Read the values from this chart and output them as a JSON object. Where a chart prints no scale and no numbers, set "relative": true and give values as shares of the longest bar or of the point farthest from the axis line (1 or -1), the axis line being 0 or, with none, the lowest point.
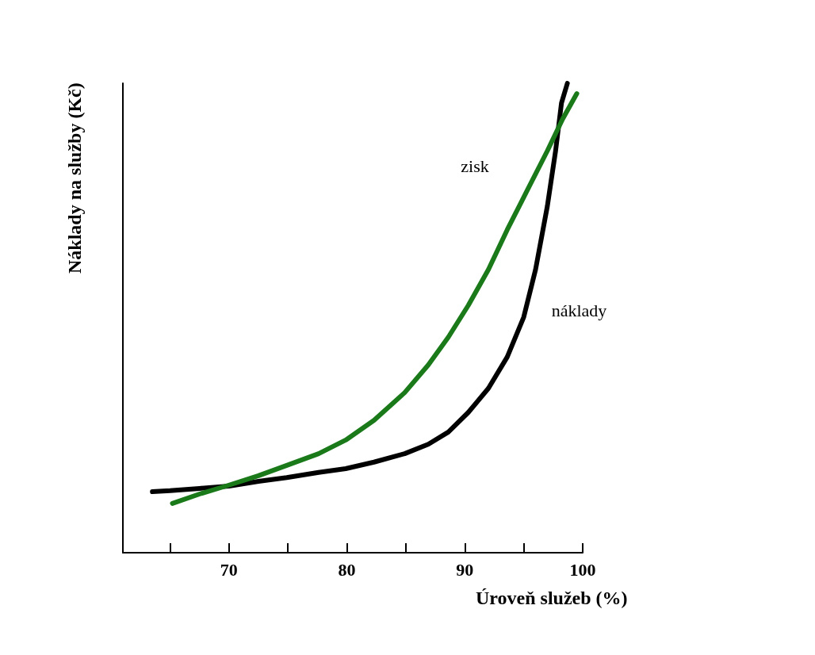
{
  "chart_data": {
    "type": "line",
    "relative": true,
    "xlabel": "Úroveň služeb (%)",
    "ylabel": "Náklady na služby (Kč)",
    "xlim": [
      61,
      100
    ],
    "xticks": [
      {
        "value": 65,
        "label": null
      },
      70,
      {
        "value": 75,
        "label": null
      },
      80,
      {
        "value": 85,
        "label": null
      },
      90,
      {
        "value": 95,
        "label": null
      },
      100
    ],
    "marker": "none",
    "line_style": "solid",
    "grid": false,
    "legend": false,
    "series": [
      {
        "name": "náklady",
        "color": "#000000",
        "x": [
          63.5,
          65.0,
          67.5,
          70,
          72.5,
          74.9,
          77.6,
          79.9,
          82.3,
          84.9,
          86.9,
          88.6,
          90.3,
          92.0,
          93.6,
          95.0,
          96.0,
          97.0,
          97.7,
          98.2,
          98.7
        ],
        "values": [
          0.13,
          0.132,
          0.137,
          0.142,
          0.152,
          0.16,
          0.171,
          0.179,
          0.193,
          0.211,
          0.231,
          0.257,
          0.299,
          0.35,
          0.417,
          0.502,
          0.603,
          0.738,
          0.856,
          0.958,
          1
        ]
      },
      {
        "name": "zisk",
        "color": "#1a7a1a",
        "x": [
          65.2,
          67.5,
          70,
          72.5,
          74.9,
          77.6,
          79.9,
          82.3,
          84.9,
          86.9,
          88.6,
          90.3,
          92.0,
          93.6,
          95.3,
          97.0,
          98.3,
          99.5
        ],
        "values": [
          0.105,
          0.125,
          0.144,
          0.164,
          0.186,
          0.211,
          0.24,
          0.282,
          0.341,
          0.4,
          0.459,
          0.527,
          0.603,
          0.688,
          0.772,
          0.856,
          0.924,
          0.978
        ]
      }
    ]
  }
}
